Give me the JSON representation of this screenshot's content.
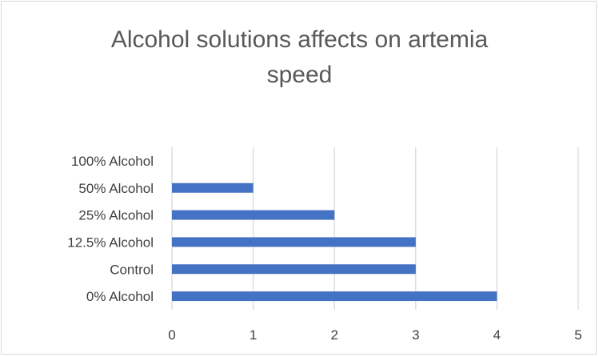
{
  "chart_data": {
    "type": "bar",
    "orientation": "horizontal",
    "title": "Alcohol solutions affects on artemia speed",
    "title_lines": [
      "Alcohol solutions affects on artemia",
      "speed"
    ],
    "categories": [
      "0% Alcohol",
      "Control",
      "12.5% Alcohol",
      "25% Alcohol",
      "50% Alcohol",
      "100% Alcohol"
    ],
    "values": [
      4,
      3,
      3,
      2,
      1,
      0
    ],
    "xlim": [
      0,
      5
    ],
    "xticks": [
      0,
      1,
      2,
      3,
      4,
      5
    ],
    "xlabel": "",
    "ylabel": "",
    "grid": "vertical",
    "legend": "none",
    "bar_color": "#4472c4",
    "grid_color": "#d9d9d9"
  }
}
